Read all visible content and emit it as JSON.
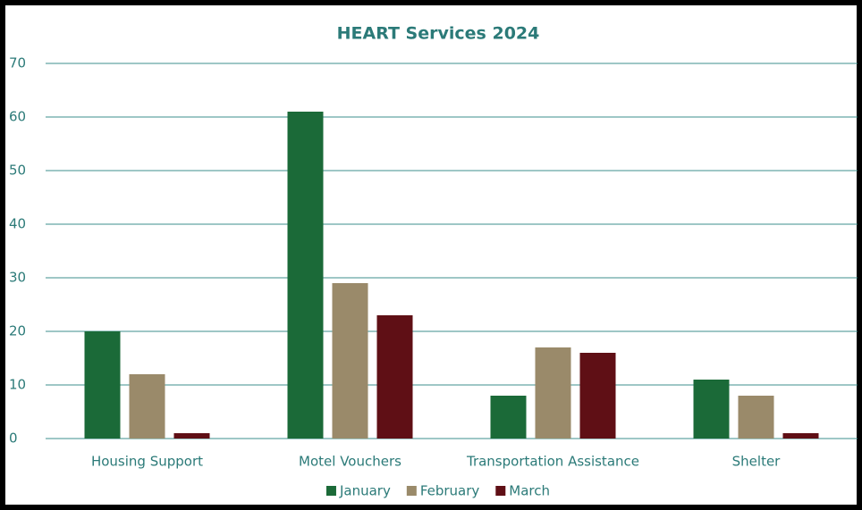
{
  "chart_data": {
    "type": "bar",
    "title": "HEART Services 2024",
    "categories": [
      "Housing Support",
      "Motel Vouchers",
      "Transportation Assistance",
      "Shelter"
    ],
    "series": [
      {
        "name": "January",
        "color": "#1b6a38",
        "values": [
          20,
          61,
          8,
          11
        ]
      },
      {
        "name": "February",
        "color": "#9a8a6a",
        "values": [
          12,
          29,
          17,
          8
        ]
      },
      {
        "name": "March",
        "color": "#5f0f15",
        "values": [
          1,
          23,
          16,
          1
        ]
      }
    ],
    "ylim": [
      0,
      70
    ],
    "yticks": [
      0,
      10,
      20,
      30,
      40,
      50,
      60,
      70
    ],
    "grid": true,
    "legend": "bottom"
  }
}
